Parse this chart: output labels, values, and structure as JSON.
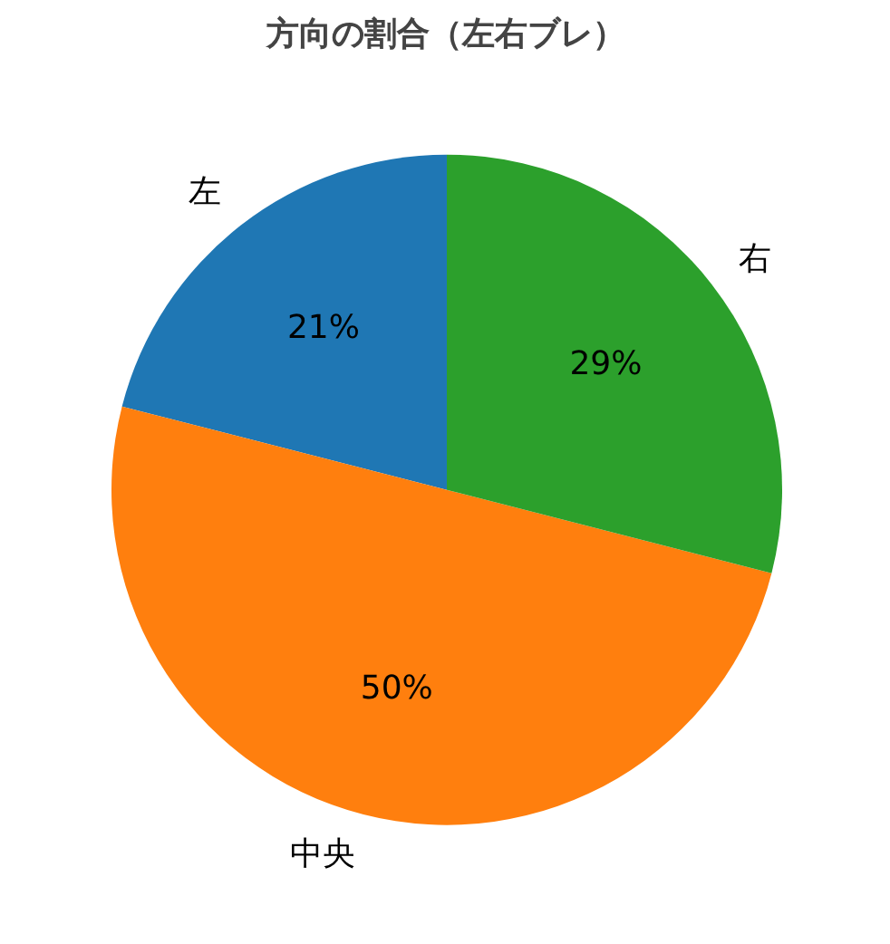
{
  "chart_data": {
    "type": "pie",
    "title": "方向の割合（左右ブレ）",
    "categories": [
      "左",
      "中央",
      "右"
    ],
    "values": [
      21,
      50,
      29
    ],
    "colors": [
      "#1f77b4",
      "#ff7f0e",
      "#2ca02c"
    ],
    "value_labels": [
      "21%",
      "50%",
      "29%"
    ]
  }
}
